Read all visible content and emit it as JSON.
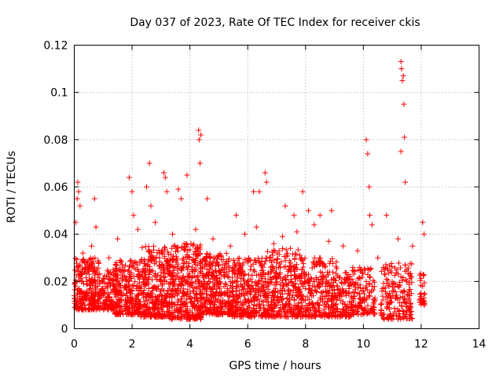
{
  "chart_data": {
    "type": "scatter",
    "title": "Day 037 of 2023, Rate Of TEC Index for receiver ckis",
    "xlabel": "GPS time / hours",
    "ylabel": "ROTI / TECUs",
    "xlim": [
      0,
      14
    ],
    "ylim": [
      0,
      0.12
    ],
    "x_ticks": [
      "0",
      "2",
      "4",
      "6",
      "8",
      "10",
      "12",
      "14"
    ],
    "y_ticks": [
      "0",
      "0.02",
      "0.04",
      "0.06",
      "0.08",
      "0.1",
      "0.12"
    ],
    "grid": true,
    "marker": "+",
    "color": "#ff0000",
    "series": [
      {
        "x": [
          0.0,
          0.05,
          0.1,
          0.15,
          0.2,
          0.25,
          0.3,
          0.35,
          0.4,
          0.45,
          0.5,
          0.55,
          0.6,
          0.65,
          0.7,
          0.75,
          0.8,
          0.85,
          0.9,
          0.95,
          1.0,
          1.1,
          1.2,
          1.3,
          1.4,
          1.5,
          1.6,
          1.7,
          1.8,
          1.9,
          2.0,
          2.1,
          2.2,
          2.3,
          2.4,
          2.5,
          2.6,
          2.7,
          2.8,
          2.9,
          3.0,
          3.1,
          3.2,
          3.3,
          3.4,
          3.5,
          3.6,
          3.7,
          3.8,
          3.9,
          4.0,
          4.1,
          4.2,
          4.3,
          4.4,
          4.5,
          4.6,
          4.7,
          4.8,
          4.9,
          5.0,
          5.1,
          5.2,
          5.3,
          5.4,
          5.5,
          5.6,
          5.7,
          5.8,
          5.9,
          6.0,
          6.1,
          6.2,
          6.3,
          6.4,
          6.5,
          6.6,
          6.7,
          6.8,
          6.9,
          7.0,
          7.1,
          7.2,
          7.3,
          7.4,
          7.5,
          7.6,
          7.7,
          7.8,
          7.9,
          8.0,
          8.1,
          8.2,
          8.3,
          8.4,
          8.5,
          8.6,
          8.7,
          8.8,
          8.9,
          9.0,
          9.1,
          9.2,
          9.3,
          9.4,
          9.5,
          9.6,
          9.7,
          9.8,
          9.9,
          10.0,
          10.1,
          10.2,
          10.3,
          10.4,
          10.7,
          10.8,
          10.9,
          11.0,
          11.1,
          11.2,
          11.3,
          11.4,
          11.5,
          11.6,
          12.0,
          12.05,
          12.1,
          0.05,
          0.1,
          0.12,
          0.15,
          0.2,
          0.7,
          0.75,
          1.9,
          2.0,
          2.05,
          2.5,
          2.6,
          2.65,
          3.1,
          3.15,
          3.2,
          3.6,
          3.7,
          3.9,
          4.3,
          4.32,
          4.35,
          4.38,
          4.6,
          5.6,
          6.2,
          6.4,
          6.6,
          6.65,
          7.3,
          7.6,
          7.9,
          8.1,
          8.5,
          8.9,
          10.1,
          10.15,
          10.2,
          10.22,
          10.3,
          10.8,
          11.3,
          11.32,
          11.35,
          11.38,
          11.4,
          11.42,
          11.3,
          11.45,
          12.05,
          0.3,
          0.6,
          1.2,
          1.5,
          2.2,
          2.8,
          3.4,
          3.8,
          4.2,
          4.8,
          5.4,
          5.9,
          6.3,
          6.9,
          7.2,
          7.7,
          8.3,
          8.8,
          9.3,
          9.8,
          10.5,
          11.2,
          11.7,
          12.1
        ],
        "y": [
          0.014,
          0.018,
          0.012,
          0.022,
          0.016,
          0.02,
          0.011,
          0.025,
          0.015,
          0.019,
          0.013,
          0.017,
          0.021,
          0.014,
          0.026,
          0.018,
          0.012,
          0.028,
          0.016,
          0.02,
          0.015,
          0.019,
          0.013,
          0.023,
          0.017,
          0.02,
          0.014,
          0.024,
          0.018,
          0.022,
          0.016,
          0.02,
          0.025,
          0.017,
          0.021,
          0.019,
          0.024,
          0.016,
          0.022,
          0.018,
          0.02,
          0.026,
          0.015,
          0.023,
          0.019,
          0.021,
          0.017,
          0.025,
          0.014,
          0.022,
          0.018,
          0.016,
          0.027,
          0.02,
          0.013,
          0.019,
          0.023,
          0.017,
          0.021,
          0.015,
          0.019,
          0.014,
          0.022,
          0.017,
          0.02,
          0.012,
          0.018,
          0.023,
          0.015,
          0.019,
          0.016,
          0.021,
          0.013,
          0.019,
          0.017,
          0.022,
          0.014,
          0.02,
          0.024,
          0.016,
          0.019,
          0.023,
          0.017,
          0.021,
          0.015,
          0.025,
          0.018,
          0.014,
          0.022,
          0.019,
          0.017,
          0.023,
          0.015,
          0.02,
          0.018,
          0.013,
          0.021,
          0.016,
          0.019,
          0.014,
          0.015,
          0.018,
          0.012,
          0.016,
          0.014,
          0.017,
          0.011,
          0.019,
          0.015,
          0.013,
          0.016,
          0.02,
          0.014,
          0.018,
          0.013,
          0.017,
          0.021,
          0.015,
          0.019,
          0.013,
          0.018,
          0.022,
          0.016,
          0.02,
          0.014,
          0.015,
          0.018,
          0.013,
          0.045,
          0.055,
          0.062,
          0.058,
          0.052,
          0.055,
          0.043,
          0.064,
          0.058,
          0.048,
          0.06,
          0.07,
          0.052,
          0.066,
          0.064,
          0.058,
          0.059,
          0.055,
          0.065,
          0.084,
          0.08,
          0.07,
          0.082,
          0.055,
          0.048,
          0.058,
          0.058,
          0.066,
          0.062,
          0.052,
          0.048,
          0.058,
          0.05,
          0.048,
          0.05,
          0.08,
          0.074,
          0.06,
          0.048,
          0.044,
          0.048,
          0.113,
          0.11,
          0.105,
          0.107,
          0.095,
          0.081,
          0.075,
          0.062,
          0.045,
          0.032,
          0.035,
          0.03,
          0.038,
          0.042,
          0.045,
          0.04,
          0.036,
          0.042,
          0.038,
          0.035,
          0.04,
          0.043,
          0.036,
          0.039,
          0.041,
          0.044,
          0.037,
          0.035,
          0.033,
          0.03,
          0.038,
          0.035,
          0.04
        ],
        "cloud": [
          {
            "x": [
              0,
              0.9
            ],
            "y": [
              0.008,
              0.03
            ],
            "n": 260
          },
          {
            "x": [
              0.9,
              1.4
            ],
            "y": [
              0.008,
              0.025
            ],
            "n": 110
          },
          {
            "x": [
              1.4,
              2.3
            ],
            "y": [
              0.006,
              0.03
            ],
            "n": 260
          },
          {
            "x": [
              2.3,
              3.3
            ],
            "y": [
              0.005,
              0.035
            ],
            "n": 330
          },
          {
            "x": [
              3.3,
              4.4
            ],
            "y": [
              0.004,
              0.036
            ],
            "n": 360
          },
          {
            "x": [
              4.4,
              5.4
            ],
            "y": [
              0.006,
              0.032
            ],
            "n": 300
          },
          {
            "x": [
              5.4,
              6.6
            ],
            "y": [
              0.005,
              0.03
            ],
            "n": 320
          },
          {
            "x": [
              6.6,
              7.8
            ],
            "y": [
              0.005,
              0.034
            ],
            "n": 330
          },
          {
            "x": [
              7.8,
              9.1
            ],
            "y": [
              0.005,
              0.03
            ],
            "n": 300
          },
          {
            "x": [
              9.1,
              9.6
            ],
            "y": [
              0.005,
              0.024
            ],
            "n": 100
          },
          {
            "x": [
              9.6,
              10.4
            ],
            "y": [
              0.006,
              0.026
            ],
            "n": 140
          },
          {
            "x": [
              10.6,
              11.7
            ],
            "y": [
              0.004,
              0.028
            ],
            "n": 180
          },
          {
            "x": [
              11.95,
              12.12
            ],
            "y": [
              0.01,
              0.024
            ],
            "n": 30
          }
        ]
      }
    ]
  }
}
